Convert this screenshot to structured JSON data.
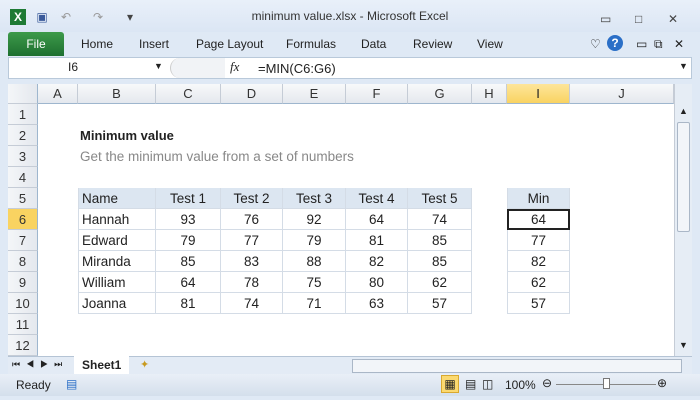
{
  "window": {
    "title": "minimum value.xlsx  -  Microsoft Excel"
  },
  "ribbon": {
    "tabs": [
      "File",
      "Home",
      "Insert",
      "Page Layout",
      "Formulas",
      "Data",
      "Review",
      "View"
    ]
  },
  "formula_bar": {
    "name_box": "I6",
    "fx": "fx",
    "formula": "=MIN(C6:G6)"
  },
  "columns": [
    "A",
    "B",
    "C",
    "D",
    "E",
    "F",
    "G",
    "H",
    "I",
    "J"
  ],
  "selected_column": "I",
  "rows": [
    "1",
    "2",
    "3",
    "4",
    "5",
    "6",
    "7",
    "8",
    "9",
    "10",
    "11",
    "12"
  ],
  "selected_row": "6",
  "sheet": {
    "title": "Minimum value",
    "subtitle": "Get the minimum value from a set of numbers",
    "headers": [
      "Name",
      "Test 1",
      "Test 2",
      "Test 3",
      "Test 4",
      "Test 5"
    ],
    "min_header": "Min",
    "data": [
      [
        "Hannah",
        "93",
        "76",
        "92",
        "64",
        "74"
      ],
      [
        "Edward",
        "79",
        "77",
        "79",
        "81",
        "85"
      ],
      [
        "Miranda",
        "85",
        "83",
        "88",
        "82",
        "85"
      ],
      [
        "William",
        "64",
        "78",
        "75",
        "80",
        "62"
      ],
      [
        "Joanna",
        "81",
        "74",
        "71",
        "63",
        "57"
      ]
    ],
    "mins": [
      "64",
      "77",
      "82",
      "62",
      "57"
    ]
  },
  "sheet_tabs": [
    "Sheet1"
  ],
  "status": {
    "ready": "Ready",
    "zoom": "100%",
    "zoom_level": 100
  },
  "colors": {
    "file_tab": "#2a8139",
    "header_fill": "#dce6f1",
    "selected_header": "#f9d361"
  }
}
